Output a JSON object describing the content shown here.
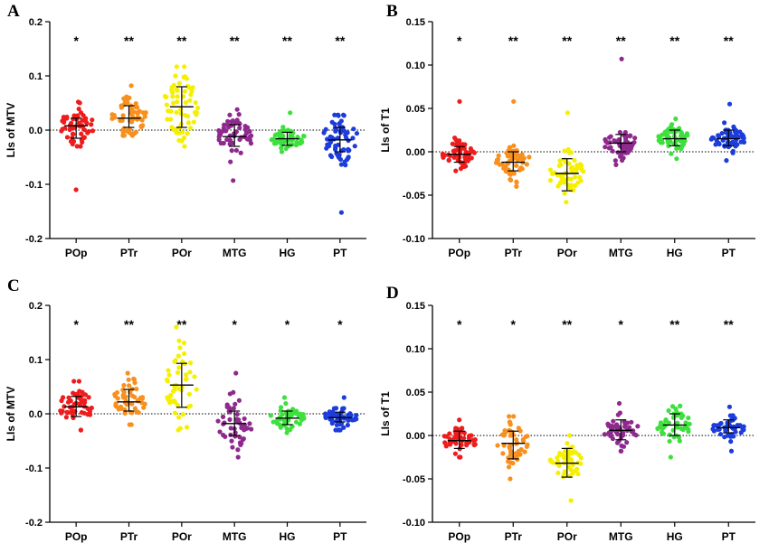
{
  "colors": {
    "POp": "#ee1c1c",
    "PTr": "#f7901e",
    "POr": "#f5f000",
    "MTG": "#8e2a8e",
    "HG": "#3ee03e",
    "PT": "#1c3cdc"
  },
  "chart_data": [
    {
      "id": "A",
      "type": "scatter",
      "letter": "A",
      "ylabel": "LIs of MTV",
      "ylim": [
        -0.2,
        0.2
      ],
      "yticks": [
        -0.2,
        -0.1,
        0.0,
        0.1,
        0.2
      ],
      "ytick_labels": [
        "-0.2",
        "-0.1",
        "0.0",
        "0.1",
        "0.2"
      ],
      "categories": [
        "POp",
        "PTr",
        "POr",
        "MTG",
        "HG",
        "PT"
      ],
      "significance": [
        "*",
        "**",
        "**",
        "**",
        "**",
        "**"
      ],
      "median": [
        0.008,
        0.022,
        0.043,
        -0.012,
        -0.016,
        -0.018
      ],
      "q_low": [
        -0.015,
        0.005,
        0.005,
        -0.03,
        -0.028,
        -0.04
      ],
      "q_high": [
        0.022,
        0.045,
        0.08,
        0.01,
        -0.004,
        0.005
      ],
      "spread": [
        0.018,
        0.018,
        0.035,
        0.02,
        0.01,
        0.025
      ],
      "min": [
        -0.11,
        -0.01,
        -0.03,
        -0.093,
        -0.04,
        -0.152
      ],
      "max": [
        0.052,
        0.082,
        0.117,
        0.038,
        0.032,
        0.028
      ],
      "n": 60
    },
    {
      "id": "B",
      "type": "scatter",
      "letter": "B",
      "ylabel": "LIs of T1",
      "ylim": [
        -0.1,
        0.15
      ],
      "yticks": [
        -0.1,
        -0.05,
        0.0,
        0.05,
        0.1,
        0.15
      ],
      "ytick_labels": [
        "-0.10",
        "-0.05",
        "0.00",
        "0.05",
        "0.10",
        "0.15"
      ],
      "categories": [
        "POp",
        "PTr",
        "POr",
        "MTG",
        "HG",
        "PT"
      ],
      "significance": [
        "*",
        "**",
        "**",
        "**",
        "**",
        "**"
      ],
      "median": [
        -0.003,
        -0.012,
        -0.025,
        0.01,
        0.015,
        0.015
      ],
      "q_low": [
        -0.012,
        -0.022,
        -0.045,
        0.0,
        0.007,
        0.007
      ],
      "q_high": [
        0.006,
        0.0,
        -0.008,
        0.02,
        0.025,
        0.025
      ],
      "spread": [
        0.008,
        0.01,
        0.013,
        0.008,
        0.007,
        0.008
      ],
      "min": [
        -0.022,
        -0.04,
        -0.058,
        -0.015,
        -0.008,
        -0.01
      ],
      "max": [
        0.058,
        0.058,
        0.045,
        0.107,
        0.038,
        0.055
      ],
      "n": 60
    },
    {
      "id": "C",
      "type": "scatter",
      "letter": "C",
      "ylabel": "LIs of MTV",
      "ylim": [
        -0.2,
        0.2
      ],
      "yticks": [
        -0.2,
        -0.1,
        0.0,
        0.1,
        0.2
      ],
      "ytick_labels": [
        "-0.2",
        "-0.1",
        "0.0",
        "0.1",
        "0.2"
      ],
      "categories": [
        "POp",
        "PTr",
        "POr",
        "MTG",
        "HG",
        "PT"
      ],
      "significance": [
        "*",
        "**",
        "**",
        "*",
        "*",
        "*"
      ],
      "median": [
        0.013,
        0.022,
        0.053,
        -0.018,
        -0.008,
        -0.007
      ],
      "q_low": [
        -0.005,
        0.005,
        0.012,
        -0.04,
        -0.02,
        -0.015
      ],
      "q_high": [
        0.032,
        0.045,
        0.093,
        0.005,
        0.005,
        0.003
      ],
      "spread": [
        0.02,
        0.02,
        0.035,
        0.025,
        0.012,
        0.01
      ],
      "min": [
        -0.03,
        -0.02,
        -0.03,
        -0.08,
        -0.035,
        -0.03
      ],
      "max": [
        0.06,
        0.075,
        0.16,
        0.075,
        0.03,
        0.03
      ],
      "n": 50
    },
    {
      "id": "D",
      "type": "scatter",
      "letter": "D",
      "ylabel": "LIs of T1",
      "ylim": [
        -0.1,
        0.15
      ],
      "yticks": [
        -0.1,
        -0.05,
        0.0,
        0.05,
        0.1,
        0.15
      ],
      "ytick_labels": [
        "-0.10",
        "-0.05",
        "0.00",
        "0.05",
        "0.10",
        "0.15"
      ],
      "categories": [
        "POp",
        "PTr",
        "POr",
        "MTG",
        "HG",
        "PT"
      ],
      "significance": [
        "*",
        "*",
        "**",
        "*",
        "**",
        "**"
      ],
      "median": [
        -0.006,
        -0.009,
        -0.032,
        0.006,
        0.012,
        0.009
      ],
      "q_low": [
        -0.015,
        -0.027,
        -0.048,
        -0.005,
        0.0,
        0.003
      ],
      "q_high": [
        0.005,
        0.005,
        -0.015,
        0.018,
        0.025,
        0.018
      ],
      "spread": [
        0.008,
        0.012,
        0.012,
        0.009,
        0.01,
        0.007
      ],
      "min": [
        -0.025,
        -0.05,
        -0.075,
        -0.018,
        -0.025,
        -0.018
      ],
      "max": [
        0.018,
        0.022,
        0.0,
        0.037,
        0.034,
        0.033
      ],
      "n": 50
    }
  ]
}
